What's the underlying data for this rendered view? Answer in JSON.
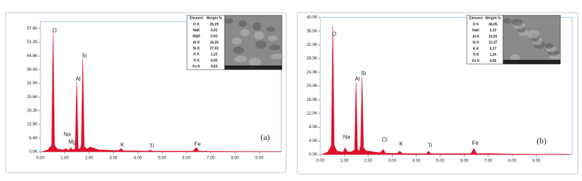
{
  "chart_data": [
    {
      "type": "area",
      "panel_label": "(a)",
      "color": "#e0102a",
      "x": [
        0.05,
        0.3,
        0.46,
        0.52,
        0.58,
        0.7,
        0.95,
        1.04,
        1.12,
        1.2,
        1.25,
        1.32,
        1.43,
        1.49,
        1.55,
        1.62,
        1.68,
        1.74,
        1.8,
        1.9,
        2.05,
        2.15,
        2.4,
        3.2,
        3.31,
        3.42,
        4.42,
        4.51,
        4.6,
        6.28,
        6.4,
        6.52,
        7.1,
        8.0,
        9.0,
        9.9
      ],
      "values": [
        0,
        900,
        3000,
        55500,
        3000,
        1200,
        900,
        1500,
        800,
        900,
        2000,
        800,
        1500,
        32600,
        1600,
        1200,
        3000,
        43400,
        2500,
        1300,
        2200,
        1800,
        900,
        500,
        1500,
        500,
        300,
        800,
        300,
        300,
        2000,
        300,
        200,
        150,
        100,
        100
      ],
      "xlim": [
        0,
        9.9
      ],
      "ylim": [
        0,
        60800
      ],
      "xticks": [
        {
          "value": 0,
          "label": "0.00"
        },
        {
          "value": 1,
          "label": "1.00"
        },
        {
          "value": 2,
          "label": "2.00"
        },
        {
          "value": 3,
          "label": "3.00"
        },
        {
          "value": 4,
          "label": "4.00"
        },
        {
          "value": 5,
          "label": "5.00"
        },
        {
          "value": 6,
          "label": "6.00"
        },
        {
          "value": 7,
          "label": "7.00"
        },
        {
          "value": 8,
          "label": "8.00"
        },
        {
          "value": 9,
          "label": "9.00"
        }
      ],
      "yticks": [
        {
          "value": 0,
          "label": "0.0K"
        },
        {
          "value": 6400,
          "label": "6.4K"
        },
        {
          "value": 12800,
          "label": "12.8K"
        },
        {
          "value": 19200,
          "label": "19.2K"
        },
        {
          "value": 25600,
          "label": "25.6K"
        },
        {
          "value": 32000,
          "label": "32.0K"
        },
        {
          "value": 38400,
          "label": "38.4K"
        },
        {
          "value": 44800,
          "label": "44.8K"
        },
        {
          "value": 51200,
          "label": "51.2K"
        },
        {
          "value": 57600,
          "label": "57.6K"
        }
      ],
      "annotations": [
        {
          "text": "O",
          "x": 0.52,
          "y": 56500
        },
        {
          "text": "Na",
          "x": 1.04,
          "y": 8000
        },
        {
          "text": "Mg",
          "x": 1.25,
          "y": 4500
        },
        {
          "text": "Al",
          "x": 1.49,
          "y": 33800
        },
        {
          "text": "Si",
          "x": 1.74,
          "y": 44800
        },
        {
          "text": "K",
          "x": 3.31,
          "y": 3200
        },
        {
          "text": "Ti",
          "x": 4.51,
          "y": 2500
        },
        {
          "text": "Fe",
          "x": 6.4,
          "y": 3500
        }
      ],
      "inset_table": {
        "columns": [
          "Element",
          "Weight %"
        ],
        "rows": [
          [
            "O K",
            "26,29"
          ],
          [
            "NaK",
            "0,41"
          ],
          [
            "MgR",
            "0,63"
          ],
          [
            "Al K",
            "16,26"
          ],
          [
            "Si K",
            "27,02"
          ],
          [
            "K K",
            "1,22"
          ],
          [
            "Ti K",
            "0,55"
          ],
          [
            "Fe K",
            "4,63"
          ]
        ]
      }
    },
    {
      "type": "area",
      "panel_label": "(b)",
      "color": "#e0102a",
      "x": [
        0.05,
        0.3,
        0.46,
        0.52,
        0.58,
        0.7,
        0.95,
        1.04,
        1.12,
        1.3,
        1.43,
        1.49,
        1.55,
        1.62,
        1.68,
        1.74,
        1.8,
        1.9,
        2.1,
        2.5,
        2.62,
        2.72,
        3.2,
        3.31,
        3.42,
        4.42,
        4.51,
        4.6,
        6.28,
        6.4,
        6.52,
        7.0,
        8.0,
        9.0,
        10.4
      ],
      "values": [
        0,
        700,
        2500,
        37400,
        2500,
        1000,
        700,
        2000,
        800,
        800,
        1400,
        21100,
        1500,
        1000,
        2500,
        22500,
        2000,
        1100,
        900,
        500,
        1500,
        400,
        300,
        1000,
        300,
        200,
        1000,
        250,
        250,
        1800,
        250,
        300,
        150,
        100,
        100
      ],
      "xlim": [
        0,
        10.5
      ],
      "ylim": [
        0,
        40000
      ],
      "xticks": [
        {
          "value": 0,
          "label": "0.00"
        },
        {
          "value": 1,
          "label": "1.00"
        },
        {
          "value": 2,
          "label": "2.00"
        },
        {
          "value": 3,
          "label": "3.00"
        },
        {
          "value": 4,
          "label": "4.00"
        },
        {
          "value": 5,
          "label": "5.00"
        },
        {
          "value": 6,
          "label": "6.00"
        },
        {
          "value": 7,
          "label": "7.00"
        },
        {
          "value": 8,
          "label": "8.00"
        },
        {
          "value": 9,
          "label": "9.00"
        }
      ],
      "yticks": [
        {
          "value": 0,
          "label": "0.0K"
        },
        {
          "value": 4000,
          "label": "4.0K"
        },
        {
          "value": 8000,
          "label": "8.0K"
        },
        {
          "value": 12000,
          "label": "12.0K"
        },
        {
          "value": 16000,
          "label": "16.0K"
        },
        {
          "value": 20000,
          "label": "20.0K"
        },
        {
          "value": 24000,
          "label": "24.0K"
        },
        {
          "value": 28000,
          "label": "28.0K"
        },
        {
          "value": 32000,
          "label": "32.0K"
        },
        {
          "value": 36000,
          "label": "36.0K"
        },
        {
          "value": 40000,
          "label": "40.0K"
        }
      ],
      "annotations": [
        {
          "text": "O",
          "x": 0.52,
          "y": 35000
        },
        {
          "text": "Na",
          "x": 1.04,
          "y": 5000
        },
        {
          "text": "Al",
          "x": 1.49,
          "y": 22000
        },
        {
          "text": "Si",
          "x": 1.74,
          "y": 23600
        },
        {
          "text": "Cl",
          "x": 2.62,
          "y": 4200
        },
        {
          "text": "K",
          "x": 3.31,
          "y": 3000
        },
        {
          "text": "Ti",
          "x": 4.51,
          "y": 2600
        },
        {
          "text": "Fe",
          "x": 6.4,
          "y": 3300
        }
      ],
      "inset_table": {
        "columns": [
          "Element",
          "Weight %"
        ],
        "rows": [
          [
            "O K",
            "46,05"
          ],
          [
            "NaK",
            "2,13"
          ],
          [
            "Al K",
            "16,91"
          ],
          [
            "Si K",
            "23,37"
          ],
          [
            "K K",
            "0,27"
          ],
          [
            "Ti K",
            "1,24"
          ],
          [
            "Fe K",
            "4,56"
          ]
        ]
      }
    }
  ]
}
